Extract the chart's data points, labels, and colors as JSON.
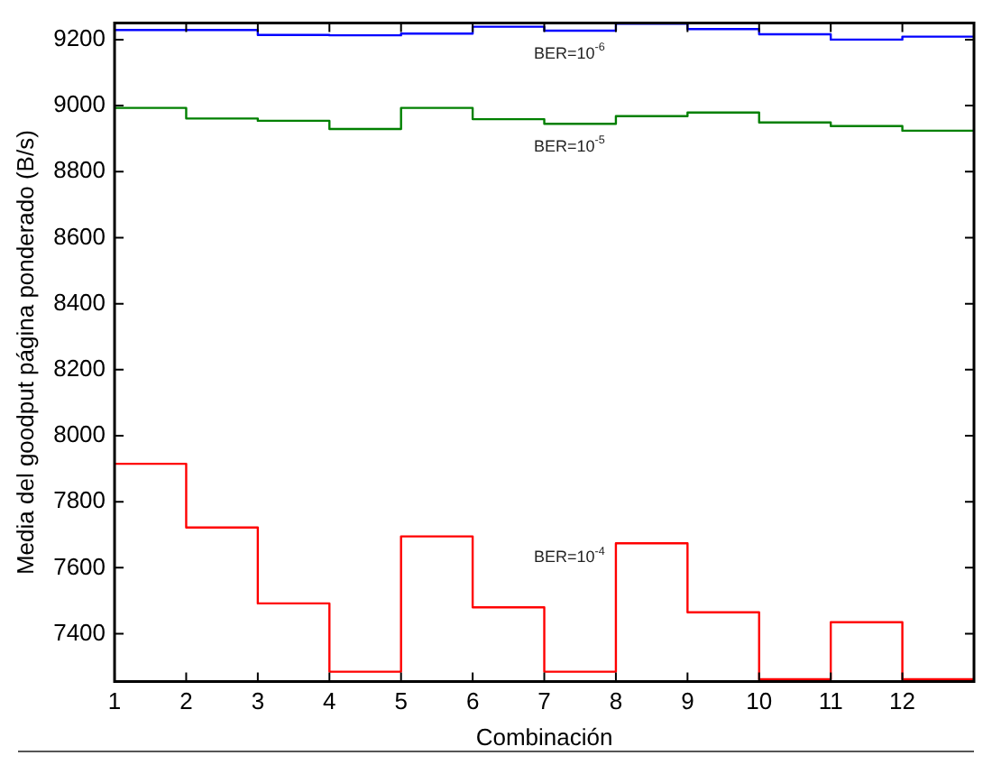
{
  "chart_data": {
    "type": "step",
    "xlabel": "Combinación",
    "ylabel": "Media del goodput página ponderado (B/s)",
    "x": [
      1,
      2,
      3,
      4,
      5,
      6,
      7,
      8,
      9,
      10,
      11,
      12,
      13
    ],
    "series": [
      {
        "name": "BER=10$^{-6}$",
        "color": "#0000ff",
        "values": [
          9229,
          9229,
          9214,
          9213,
          9218,
          9239,
          9227,
          9248,
          9232,
          9216,
          9200,
          9209,
          9209
        ]
      },
      {
        "name": "BER=10$^{-5}$",
        "color": "#008000",
        "values": [
          8993,
          8961,
          8954,
          8929,
          8993,
          8959,
          8945,
          8968,
          8979,
          8949,
          8938,
          8924,
          8924
        ]
      },
      {
        "name": "BER=10$^{-4}$",
        "color": "#ff0000",
        "values": [
          7915,
          7722,
          7492,
          7285,
          7695,
          7480,
          7285,
          7674,
          7465,
          7262,
          7435,
          7262,
          7262
        ]
      }
    ],
    "xlim": [
      1,
      13
    ],
    "xticks": [
      1,
      2,
      3,
      4,
      5,
      6,
      7,
      8,
      9,
      10,
      11,
      12
    ],
    "ylim": [
      7255,
      9250
    ],
    "yticks": [
      7400,
      7600,
      7800,
      8000,
      8200,
      8400,
      8600,
      8800,
      9000,
      9200
    ],
    "grid": false,
    "legend": false,
    "marker": "none",
    "line_style": "solid"
  }
}
